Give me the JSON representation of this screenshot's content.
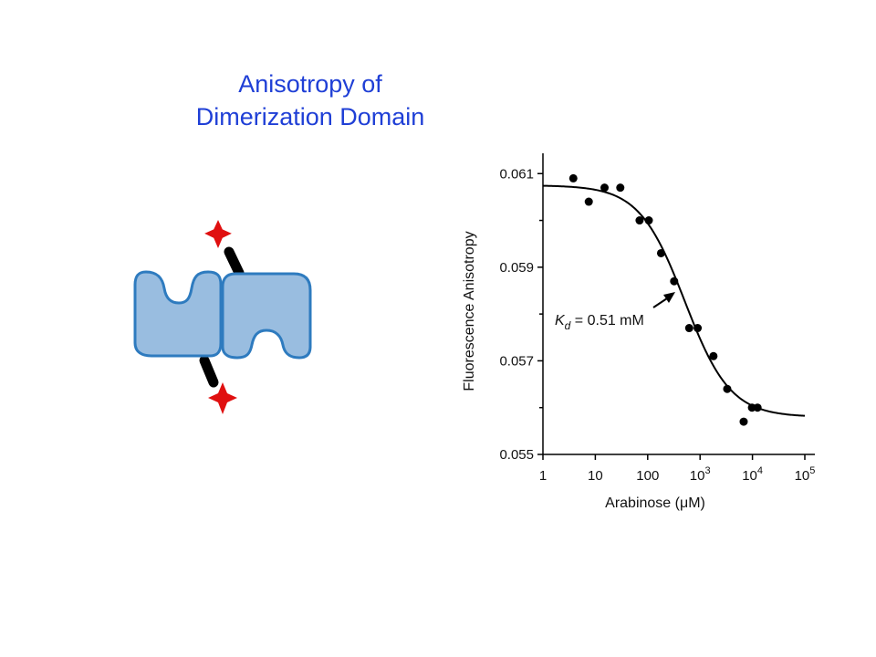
{
  "slide": {
    "title_line1": "Anisotropy of",
    "title_line2": "Dimerization Domain"
  },
  "diagram": {
    "protein_fill": "#99bde0",
    "protein_stroke": "#2e7bbf",
    "label_color": "#e01010",
    "linker_color": "#000000",
    "icons": [
      "protein-domain-left",
      "protein-domain-right",
      "red-star-icon",
      "black-linker"
    ]
  },
  "chart_data": {
    "type": "scatter",
    "title": "",
    "xlabel_prefix": "Arabinose (",
    "xlabel_unit": "μM",
    "xlabel_suffix": ")",
    "ylabel": "Fluorescence Anisotropy",
    "x_scale": "log",
    "xlim": [
      1,
      100000
    ],
    "ylim": [
      0.055,
      0.0612
    ],
    "x_ticks": [
      {
        "value": 1,
        "base": "1",
        "exp": ""
      },
      {
        "value": 10,
        "base": "10",
        "exp": ""
      },
      {
        "value": 100,
        "base": "100",
        "exp": ""
      },
      {
        "value": 1000,
        "base": "10",
        "exp": "3"
      },
      {
        "value": 10000,
        "base": "10",
        "exp": "4"
      },
      {
        "value": 100000,
        "base": "10",
        "exp": "5"
      }
    ],
    "y_ticks": [
      {
        "value": 0.055,
        "label": "0.055"
      },
      {
        "value": 0.057,
        "label": "0.057"
      },
      {
        "value": 0.059,
        "label": "0.059"
      },
      {
        "value": 0.061,
        "label": "0.061"
      }
    ],
    "y_minor_ticks": [
      0.056,
      0.058,
      0.06
    ],
    "points": [
      {
        "x": 3.8,
        "y": 0.0609
      },
      {
        "x": 7.5,
        "y": 0.0604
      },
      {
        "x": 15,
        "y": 0.0607
      },
      {
        "x": 30,
        "y": 0.0607
      },
      {
        "x": 70,
        "y": 0.06
      },
      {
        "x": 105,
        "y": 0.06
      },
      {
        "x": 180,
        "y": 0.0593
      },
      {
        "x": 320,
        "y": 0.0587
      },
      {
        "x": 620,
        "y": 0.0577
      },
      {
        "x": 900,
        "y": 0.0577
      },
      {
        "x": 1800,
        "y": 0.0571
      },
      {
        "x": 3300,
        "y": 0.0564
      },
      {
        "x": 6800,
        "y": 0.0557
      },
      {
        "x": 9800,
        "y": 0.056
      },
      {
        "x": 12500,
        "y": 0.056
      }
    ],
    "fit_curve": {
      "top": 0.06075,
      "bottom": 0.0558,
      "kd": 510
    },
    "annotation": {
      "symbol": "K",
      "subscript": "d",
      "text": " = 0.51 mM",
      "arrow_to_x": 420
    }
  }
}
